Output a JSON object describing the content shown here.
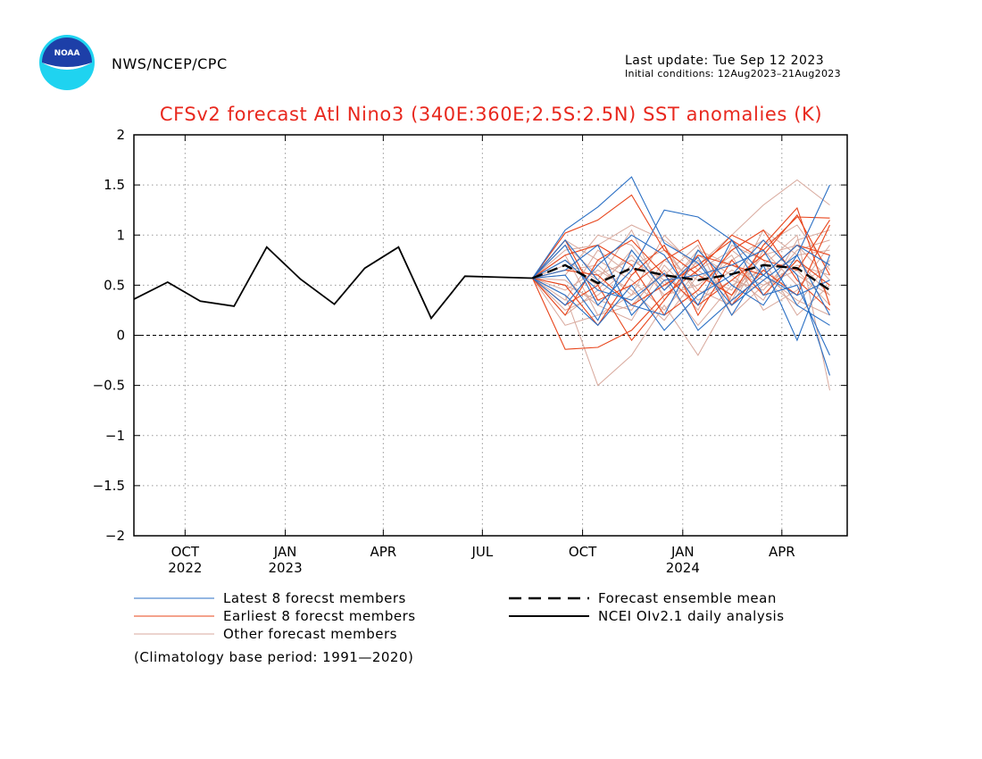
{
  "header": {
    "agency": "NWS/NCEP/CPC",
    "last_update": "Last update: Tue Sep 12 2023",
    "initial_conditions": "Initial conditions: 12Aug2023–21Aug2023",
    "logo_text": "NOAA"
  },
  "footnote": "(Climatology base period: 1991—2020)",
  "colors": {
    "latest": "#2a6fc4",
    "earliest": "#e8441a",
    "other": "#d8a89c",
    "analysis": "#000000",
    "mean": "#000000",
    "title": "#e8281e"
  },
  "chart_data": {
    "type": "line",
    "title": "CFSv2 forecast Atl Nino3 (340E:360E;2.5S:2.5N) SST anomalies (K)",
    "xlabel": "",
    "ylabel": "",
    "ylim": [
      -2,
      2
    ],
    "xlim": [
      "2022-08-15",
      "2024-05-31"
    ],
    "y_ticks": [
      -2,
      -1.5,
      -1,
      -0.5,
      0,
      0.5,
      1,
      1.5,
      2
    ],
    "y_tick_labels": [
      "−2",
      "−1.5",
      "−1",
      "−0.5",
      "0",
      "0.5",
      "1",
      "1.5",
      "2"
    ],
    "x_ticks": [
      {
        "date": "2022-10-01",
        "label": "OCT",
        "year": "2022"
      },
      {
        "date": "2023-01-01",
        "label": "JAN",
        "year": "2023"
      },
      {
        "date": "2023-04-01",
        "label": "APR",
        "year": ""
      },
      {
        "date": "2023-07-01",
        "label": "JUL",
        "year": ""
      },
      {
        "date": "2023-10-01",
        "label": "OCT",
        "year": ""
      },
      {
        "date": "2024-01-01",
        "label": "JAN",
        "year": "2024"
      },
      {
        "date": "2024-04-01",
        "label": "APR",
        "year": ""
      }
    ],
    "grid": true,
    "zero_line": "dashed",
    "legend": {
      "position": "bottom",
      "entries": [
        {
          "key": "latest",
          "label": "Latest 8 forecst members"
        },
        {
          "key": "earliest",
          "label": "Earliest 8 forecst members"
        },
        {
          "key": "other",
          "label": "Other forecast members"
        },
        {
          "key": "mean",
          "label": "Forecast ensemble mean"
        },
        {
          "key": "analysis",
          "label": "NCEI OIv2.1 daily analysis"
        }
      ]
    },
    "forecast_x": [
      "2023-08-16",
      "2023-09-15",
      "2023-10-15",
      "2023-11-15",
      "2023-12-15",
      "2024-01-15",
      "2024-02-15",
      "2024-03-15",
      "2024-04-15",
      "2024-05-15"
    ],
    "series": [
      {
        "key": "analysis",
        "x": [
          "2022-08-15",
          "2022-09-15",
          "2022-10-15",
          "2022-11-15",
          "2022-12-15",
          "2023-01-15",
          "2023-02-15",
          "2023-03-15",
          "2023-04-15",
          "2023-05-15",
          "2023-06-15",
          "2023-07-15",
          "2023-08-16"
        ],
        "values": [
          0.36,
          0.53,
          0.34,
          0.29,
          0.88,
          0.56,
          0.31,
          0.67,
          0.88,
          0.17,
          0.59,
          0.58,
          0.57
        ]
      },
      {
        "key": "mean",
        "values": [
          0.57,
          0.7,
          0.52,
          0.67,
          0.6,
          0.55,
          0.61,
          0.7,
          0.67,
          0.45
        ]
      }
    ],
    "members": {
      "latest": [
        [
          0.57,
          1.05,
          1.28,
          1.58,
          0.92,
          0.72,
          0.3,
          0.55,
          0.8,
          1.5
        ],
        [
          0.57,
          0.9,
          0.3,
          0.65,
          1.25,
          1.18,
          0.95,
          0.6,
          0.4,
          0.55
        ],
        [
          0.57,
          0.4,
          0.1,
          0.5,
          0.05,
          0.4,
          0.6,
          0.95,
          0.6,
          -0.4
        ],
        [
          0.57,
          0.75,
          0.45,
          0.35,
          0.62,
          0.05,
          0.35,
          0.6,
          0.9,
          0.7
        ],
        [
          0.57,
          0.6,
          0.15,
          0.85,
          0.45,
          0.78,
          0.2,
          0.7,
          -0.05,
          0.8
        ],
        [
          0.57,
          0.95,
          0.55,
          0.3,
          0.2,
          0.85,
          0.5,
          0.3,
          0.8,
          0.2
        ],
        [
          0.57,
          0.3,
          0.7,
          1.0,
          0.8,
          0.3,
          0.95,
          0.4,
          0.5,
          -0.2
        ],
        [
          0.57,
          0.65,
          0.9,
          0.2,
          0.55,
          0.6,
          0.7,
          0.85,
          0.3,
          0.1
        ]
      ],
      "earliest": [
        [
          0.57,
          -0.14,
          -0.12,
          0.05,
          0.4,
          0.65,
          1.0,
          0.85,
          1.18,
          1.17
        ],
        [
          0.57,
          1.02,
          1.15,
          1.4,
          0.85,
          0.6,
          0.4,
          0.9,
          1.27,
          0.3
        ],
        [
          0.57,
          0.3,
          0.5,
          -0.05,
          0.35,
          0.8,
          0.7,
          0.6,
          0.9,
          0.8
        ],
        [
          0.57,
          0.8,
          0.9,
          0.7,
          0.2,
          0.45,
          0.85,
          1.05,
          0.55,
          0.25
        ],
        [
          0.57,
          0.2,
          0.75,
          0.95,
          0.6,
          0.3,
          0.55,
          0.8,
          1.2,
          0.6
        ],
        [
          0.57,
          0.95,
          0.35,
          0.5,
          0.75,
          0.95,
          0.3,
          0.65,
          0.4,
          1.1
        ],
        [
          0.57,
          0.5,
          0.1,
          0.6,
          0.9,
          0.2,
          0.75,
          0.4,
          0.75,
          0.5
        ],
        [
          0.57,
          0.65,
          0.6,
          0.3,
          0.5,
          0.7,
          0.95,
          0.75,
          0.65,
          1.15
        ]
      ],
      "other": [
        [
          0.57,
          0.4,
          -0.5,
          -0.2,
          0.3,
          -0.2,
          0.4,
          0.7,
          1.0,
          -0.55
        ],
        [
          0.57,
          0.85,
          0.9,
          1.1,
          0.95,
          0.7,
          1.0,
          1.3,
          1.55,
          1.3
        ],
        [
          0.57,
          0.1,
          0.2,
          0.4,
          0.6,
          0.9,
          0.2,
          0.5,
          0.7,
          0.6
        ],
        [
          0.57,
          0.7,
          0.5,
          0.8,
          0.4,
          0.5,
          0.75,
          0.95,
          0.6,
          0.4
        ],
        [
          0.57,
          0.55,
          0.3,
          0.15,
          0.7,
          0.35,
          0.55,
          0.45,
          0.85,
          0.95
        ],
        [
          0.57,
          0.95,
          0.75,
          0.55,
          0.25,
          0.65,
          0.85,
          0.6,
          0.35,
          0.2
        ],
        [
          0.57,
          0.25,
          0.4,
          0.7,
          0.85,
          0.45,
          0.3,
          0.85,
          0.5,
          0.7
        ],
        [
          0.57,
          0.6,
          1.0,
          0.9,
          0.5,
          0.8,
          0.6,
          0.35,
          0.95,
          1.05
        ],
        [
          0.57,
          0.8,
          0.2,
          0.3,
          0.65,
          0.25,
          0.9,
          0.75,
          0.2,
          0.5
        ],
        [
          0.57,
          0.45,
          0.65,
          0.45,
          0.15,
          0.6,
          0.45,
          1.05,
          0.8,
          0.85
        ],
        [
          0.57,
          0.35,
          0.85,
          0.6,
          0.9,
          0.4,
          0.65,
          0.5,
          0.65,
          0.3
        ],
        [
          0.57,
          0.75,
          0.55,
          1.05,
          0.35,
          0.75,
          0.35,
          0.9,
          1.1,
          0.65
        ],
        [
          0.57,
          0.5,
          0.35,
          0.25,
          0.75,
          0.55,
          0.8,
          0.25,
          0.45,
          0.9
        ],
        [
          0.57,
          0.9,
          0.6,
          0.75,
          0.55,
          0.1,
          0.5,
          0.65,
          0.75,
          0.4
        ],
        [
          0.57,
          0.2,
          0.45,
          0.85,
          0.45,
          0.85,
          0.7,
          0.55,
          0.3,
          0.75
        ],
        [
          0.57,
          0.65,
          0.7,
          0.4,
          1.0,
          0.65,
          0.4,
          0.8,
          0.9,
          0.55
        ]
      ]
    }
  }
}
